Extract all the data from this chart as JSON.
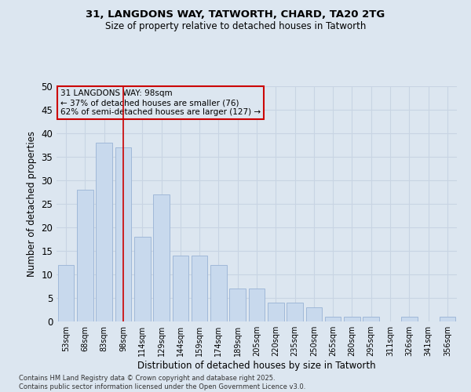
{
  "title_line1": "31, LANGDONS WAY, TATWORTH, CHARD, TA20 2TG",
  "title_line2": "Size of property relative to detached houses in Tatworth",
  "xlabel": "Distribution of detached houses by size in Tatworth",
  "ylabel": "Number of detached properties",
  "categories": [
    "53sqm",
    "68sqm",
    "83sqm",
    "98sqm",
    "114sqm",
    "129sqm",
    "144sqm",
    "159sqm",
    "174sqm",
    "189sqm",
    "205sqm",
    "220sqm",
    "235sqm",
    "250sqm",
    "265sqm",
    "280sqm",
    "295sqm",
    "311sqm",
    "326sqm",
    "341sqm",
    "356sqm"
  ],
  "values": [
    12,
    28,
    38,
    37,
    18,
    27,
    14,
    14,
    12,
    7,
    7,
    4,
    4,
    3,
    1,
    1,
    1,
    0,
    1,
    0,
    1
  ],
  "bar_color": "#c8d9ed",
  "bar_edge_color": "#a0b8d8",
  "grid_color": "#c8d4e3",
  "background_color": "#dce6f0",
  "annotation_box_text": "31 LANGDONS WAY: 98sqm\n← 37% of detached houses are smaller (76)\n62% of semi-detached houses are larger (127) →",
  "vline_x": 3,
  "vline_color": "#cc0000",
  "annotation_box_color": "#cc0000",
  "ylim": [
    0,
    50
  ],
  "yticks": [
    0,
    5,
    10,
    15,
    20,
    25,
    30,
    35,
    40,
    45,
    50
  ],
  "footer_line1": "Contains HM Land Registry data © Crown copyright and database right 2025.",
  "footer_line2": "Contains public sector information licensed under the Open Government Licence v3.0."
}
